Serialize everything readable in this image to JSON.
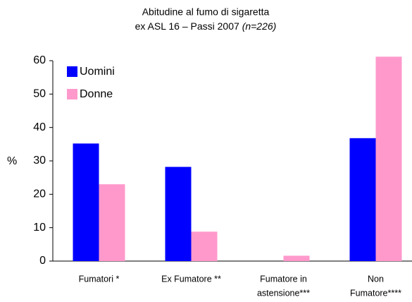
{
  "chart_data": {
    "type": "bar",
    "title": "Abitudine al fumo di sigaretta",
    "subtitle": "ex ASL 16 – Passi 2007",
    "annotation": "(n=226)",
    "y_label": "%",
    "categories": [
      [
        "Fumatori *"
      ],
      [
        "Ex Fumatore **"
      ],
      [
        "Fumatore in",
        "astensione***"
      ],
      [
        "Non",
        "Fumatore****"
      ]
    ],
    "series": [
      {
        "name": "Uomini",
        "color": "#0000ff",
        "values": [
          35.2,
          28.2,
          0,
          36.8
        ]
      },
      {
        "name": "Donne",
        "color": "#ff99cc",
        "values": [
          23,
          8.8,
          1.6,
          61.2
        ]
      }
    ],
    "ylim": [
      0,
      60
    ],
    "yticks": [
      0,
      10,
      20,
      30,
      40,
      50,
      60
    ],
    "grid": false,
    "legend": "top-left"
  }
}
